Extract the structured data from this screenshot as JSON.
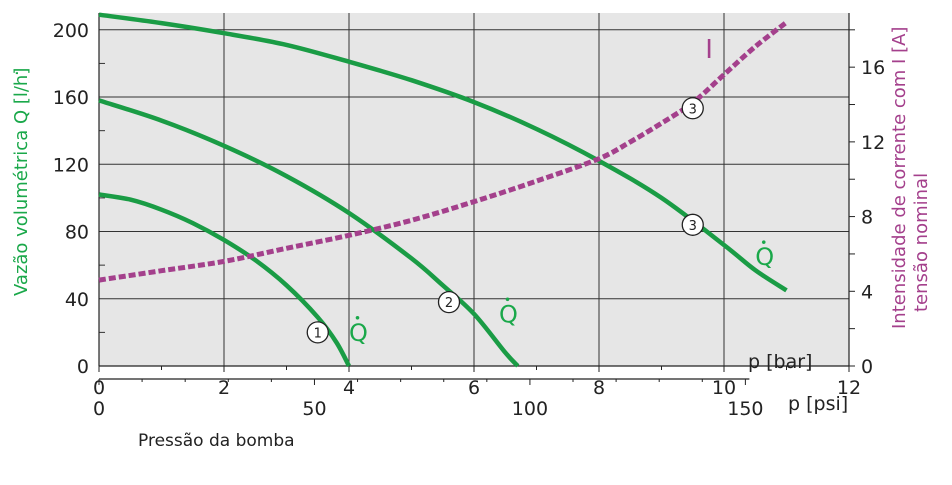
{
  "chart_data": {
    "type": "line",
    "colors": {
      "flow": "#1a9c45",
      "current": "#a4408c",
      "plot_bg": "#e6e6e6",
      "grid": "#333333",
      "label_flow": "#1aa84a",
      "label_current": "#a4408c"
    },
    "x_bar": {
      "label": "p [bar]",
      "range": [
        0,
        12
      ],
      "ticks": [
        "0",
        "2",
        "4",
        "6",
        "8",
        "10",
        "12"
      ]
    },
    "x_psi": {
      "label": "p [psi]",
      "ticks": [
        "0",
        "50",
        "100",
        "150"
      ],
      "title": "Pressão da bomba"
    },
    "y_left": {
      "label": "Vazão volumétrica Q [l/h]",
      "dot": "·",
      "range": [
        0,
        210
      ],
      "ticks": [
        "0",
        "40",
        "80",
        "120",
        "160",
        "200"
      ]
    },
    "y_right": {
      "label_line1": "Intensidade de corrente com I [A]",
      "label_line2": "tensão nominal",
      "range": [
        0,
        18.9
      ],
      "ticks": [
        "0",
        "4",
        "8",
        "12",
        "16"
      ]
    },
    "grid": true,
    "series": [
      {
        "name": "1",
        "kind": "flow",
        "points": [
          [
            0,
            102
          ],
          [
            0.5,
            99
          ],
          [
            1,
            93
          ],
          [
            1.5,
            85
          ],
          [
            2,
            75
          ],
          [
            2.5,
            63
          ],
          [
            3,
            48
          ],
          [
            3.5,
            29
          ],
          [
            3.8,
            14
          ],
          [
            4.0,
            0
          ]
        ],
        "marker": {
          "label": "1",
          "at": [
            3.5,
            20
          ]
        },
        "end_label": {
          "text": "Q",
          "at": [
            4.0,
            15
          ]
        }
      },
      {
        "name": "2",
        "kind": "flow",
        "points": [
          [
            0,
            158
          ],
          [
            1,
            146
          ],
          [
            2,
            131
          ],
          [
            3,
            113
          ],
          [
            4,
            91
          ],
          [
            5,
            64
          ],
          [
            5.5,
            48
          ],
          [
            6,
            31
          ],
          [
            6.5,
            8
          ],
          [
            6.7,
            0
          ]
        ],
        "marker": {
          "label": "2",
          "at": [
            5.6,
            38
          ]
        },
        "end_label": {
          "text": "Q",
          "at": [
            6.4,
            26
          ]
        }
      },
      {
        "name": "3",
        "kind": "flow",
        "points": [
          [
            0,
            209
          ],
          [
            1,
            204
          ],
          [
            2,
            198
          ],
          [
            3,
            191
          ],
          [
            4,
            181
          ],
          [
            5,
            170
          ],
          [
            6,
            157
          ],
          [
            7,
            141
          ],
          [
            8,
            122
          ],
          [
            9,
            100
          ],
          [
            10,
            72
          ],
          [
            10.5,
            57
          ],
          [
            11,
            45
          ]
        ],
        "marker": {
          "label": "3",
          "at": [
            9.5,
            84
          ]
        },
        "end_label": {
          "text": "Q",
          "at": [
            10.5,
            60
          ]
        }
      },
      {
        "name": "I",
        "kind": "current",
        "points": [
          [
            0,
            4.6
          ],
          [
            1,
            5.1
          ],
          [
            2,
            5.6
          ],
          [
            3,
            6.3
          ],
          [
            4,
            7.0
          ],
          [
            5,
            7.8
          ],
          [
            6,
            8.8
          ],
          [
            7,
            9.9
          ],
          [
            8,
            11.1
          ],
          [
            8.5,
            12.0
          ],
          [
            9,
            13.0
          ],
          [
            9.5,
            14.1
          ],
          [
            10,
            15.6
          ],
          [
            10.5,
            17.1
          ],
          [
            11,
            18.4
          ]
        ],
        "marker": {
          "label": "3",
          "at": [
            9.5,
            13.8
          ]
        },
        "end_label": {
          "text": "I",
          "at": [
            9.7,
            16.5
          ]
        }
      }
    ]
  }
}
